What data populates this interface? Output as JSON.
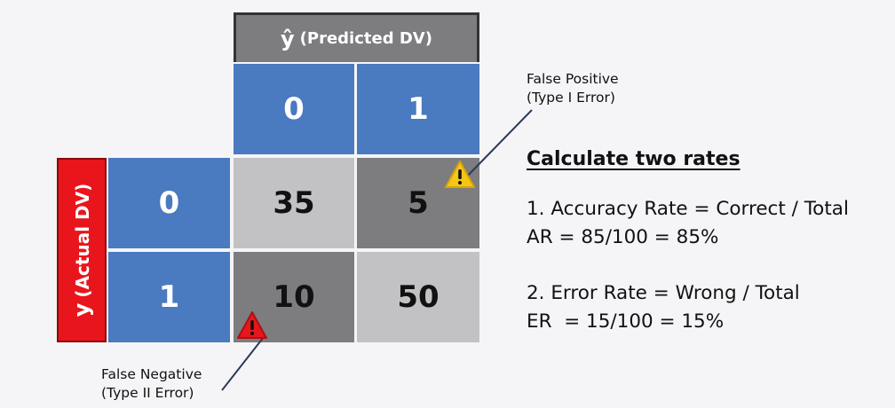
{
  "predicted_header": {
    "symbol": "ŷ",
    "label": "(Predicted DV)"
  },
  "actual_header": {
    "symbol": "y",
    "label": "(Actual DV)"
  },
  "predicted_classes": [
    "0",
    "1"
  ],
  "actual_classes": [
    "0",
    "1"
  ],
  "matrix": [
    [
      "35",
      "5"
    ],
    [
      "10",
      "50"
    ]
  ],
  "annotations": {
    "false_positive": {
      "line1": "False Positive",
      "line2": "(Type I Error)"
    },
    "false_negative": {
      "line1": "False Negative",
      "line2": "(Type II Error)"
    }
  },
  "calc": {
    "title": "Calculate two rates",
    "accuracy_formula": "1. Accuracy Rate = Correct / Total",
    "accuracy_value": "AR = 85/100 = 85%",
    "error_formula": "2. Error Rate = Wrong / Total",
    "error_value": "ER  = 15/100 = 15%"
  },
  "colors": {
    "blue": "#4a7abf",
    "light_gray": "#c2c2c4",
    "dark_gray": "#7d7d7f",
    "red": "#e8161c",
    "warning_yellow": "#f5c518",
    "warning_red": "#e8161c"
  },
  "icons": {
    "type_i_warning": "warning-triangle-icon",
    "type_ii_warning": "warning-triangle-icon"
  }
}
